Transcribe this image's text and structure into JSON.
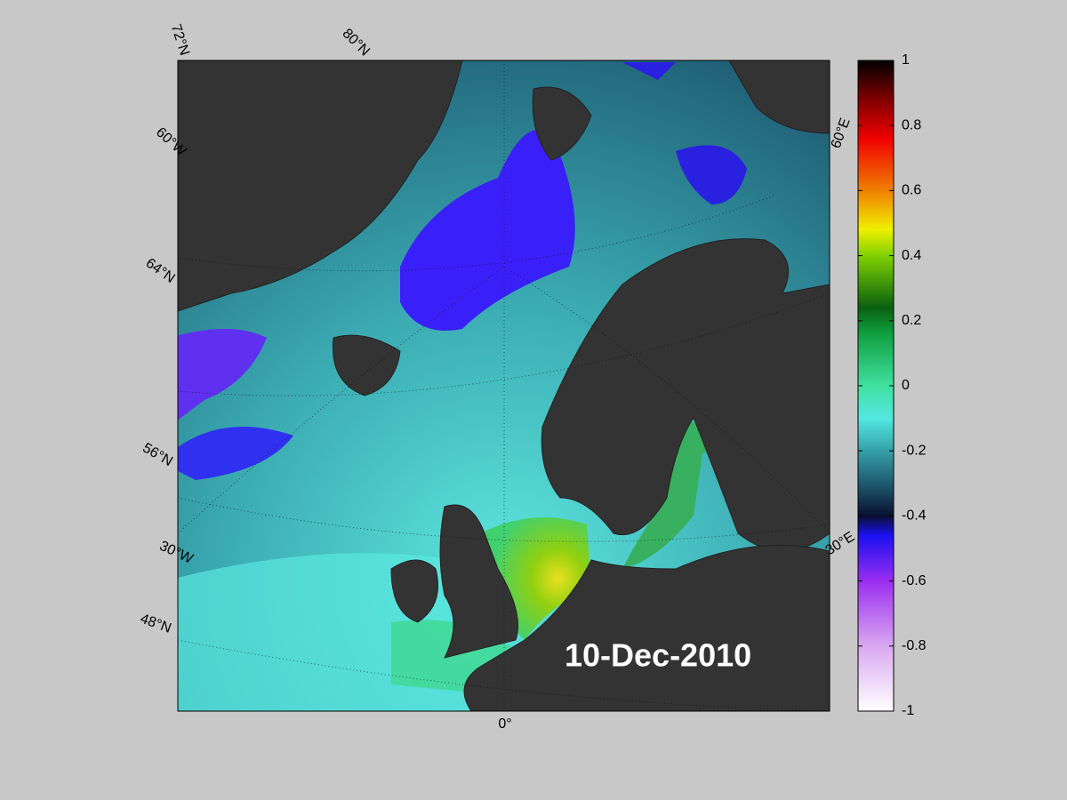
{
  "map": {
    "date": "10-Dec-2010",
    "graticule_labels": [
      "72°N",
      "80°N",
      "60°W",
      "64°N",
      "56°N",
      "30°W",
      "48°N",
      "0°",
      "30°E",
      "60°E"
    ]
  },
  "colorbar": {
    "range": [
      -1,
      1
    ],
    "ticks": [
      -1,
      -0.8,
      -0.6,
      -0.4,
      -0.2,
      0,
      0.2,
      0.4,
      0.6,
      0.8,
      1
    ]
  }
}
